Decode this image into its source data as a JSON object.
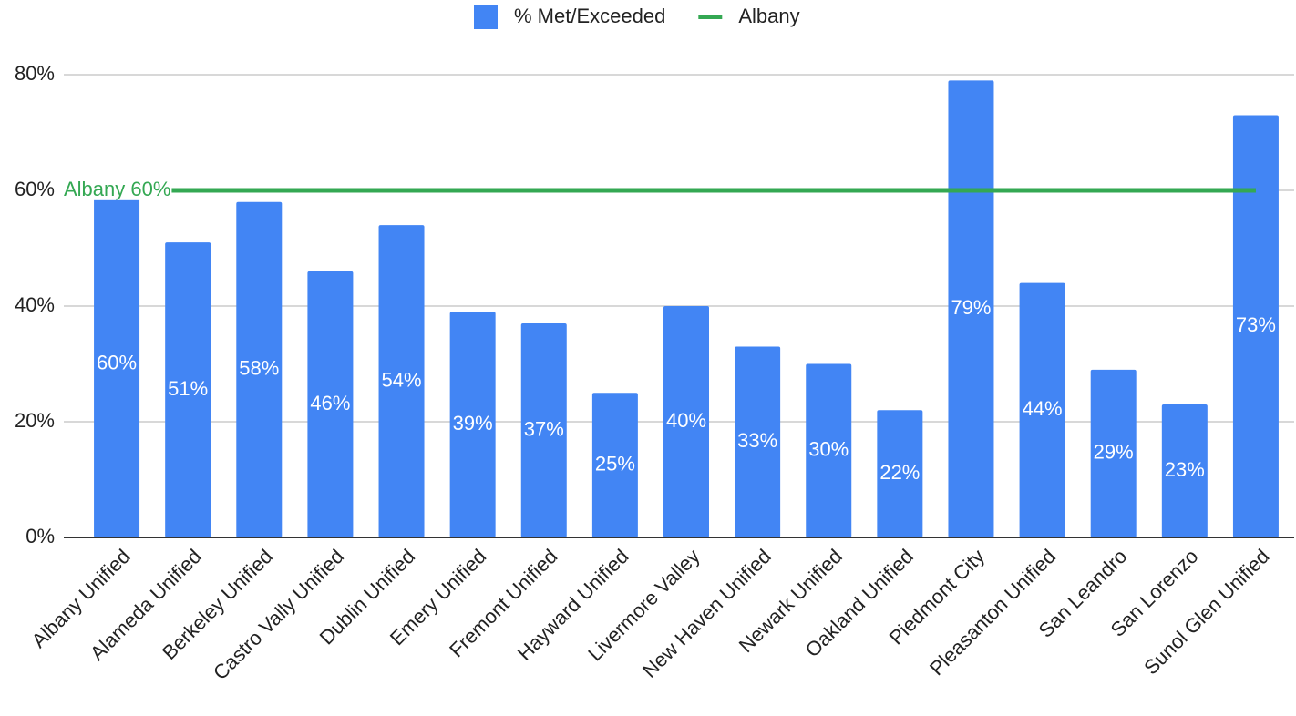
{
  "chart_data": {
    "type": "bar",
    "categories": [
      "Albany Unified",
      "Alameda Unified",
      "Berkeley Unified",
      "Castro Vally Unified",
      "Dublin Unified",
      "Emery Unified",
      "Fremont Unified",
      "Hayward Unified",
      "Livermore Valley",
      "New Haven Unified",
      "Newark Unified",
      "Oakland Unified",
      "Piedmont City",
      "Pleasanton Unified",
      "San Leandro",
      "San Lorenzo",
      "Sunol Glen Unified"
    ],
    "series": [
      {
        "name": "% Met/Exceeded",
        "type": "bar",
        "color": "#4285f4",
        "values": [
          60,
          51,
          58,
          46,
          54,
          39,
          37,
          25,
          40,
          33,
          30,
          22,
          79,
          44,
          29,
          23,
          73
        ],
        "value_labels": [
          "60%",
          "51%",
          "58%",
          "46%",
          "54%",
          "39%",
          "37%",
          "25%",
          "40%",
          "33%",
          "30%",
          "22%",
          "79%",
          "44%",
          "29%",
          "23%",
          "73%"
        ]
      },
      {
        "name": "Albany",
        "type": "line",
        "color": "#34a853",
        "values": [
          60,
          60,
          60,
          60,
          60,
          60,
          60,
          60,
          60,
          60,
          60,
          60,
          60,
          60,
          60,
          60,
          60
        ]
      }
    ],
    "annotation": "Albany 60%",
    "ylim": [
      0,
      80
    ],
    "yticks": [
      {
        "value": 0,
        "label": "0%"
      },
      {
        "value": 20,
        "label": "20%"
      },
      {
        "value": 40,
        "label": "40%"
      },
      {
        "value": 60,
        "label": "60%"
      },
      {
        "value": 80,
        "label": "80%"
      }
    ],
    "grid": true,
    "legend": "top"
  }
}
